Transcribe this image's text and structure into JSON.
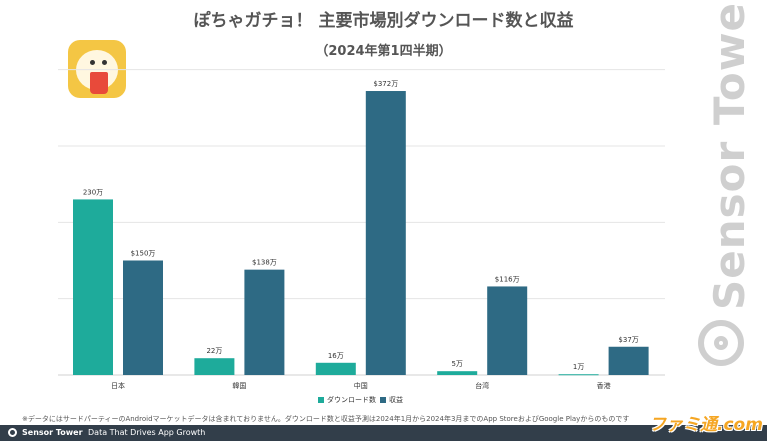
{
  "header": {
    "title": "ぽちゃガチョ！ 主要市場別ダウンロード数と収益",
    "subtitle": "（2024年第1四半期）"
  },
  "chart_data": {
    "type": "bar",
    "title": "ぽちゃガチョ！ 主要市場別ダウンロード数と収益",
    "subtitle": "（2024年第1四半期）",
    "categories": [
      "日本",
      "韓国",
      "中国",
      "台湾",
      "香港"
    ],
    "series": [
      {
        "name": "ダウンロード数",
        "values": [
          230,
          22,
          16,
          5,
          1
        ],
        "labels": [
          "230万",
          "22万",
          "16万",
          "5万",
          "1万"
        ],
        "color": "#1eab9b"
      },
      {
        "name": "収益",
        "values": [
          150,
          138,
          372,
          116,
          37
        ],
        "labels": [
          "$150万",
          "$138万",
          "$372万",
          "$116万",
          "$37万"
        ],
        "color": "#2e6a84"
      }
    ],
    "ylim": [
      0,
      400
    ],
    "grid": true,
    "legend_position": "bottom-center"
  },
  "footnote": "※データにはサードパーティーのAndroidマーケットデータは含まれておりません。ダウンロード数と収益予測は2024年1月から2024年3月までのApp StoreおよびGoogle Playからのものです",
  "footer": {
    "brand": "Sensor Tower",
    "tagline": "Data That Drives App Growth"
  },
  "watermark": {
    "brand_vertical": "Sensor Tower",
    "publisher": "ファミ通.com"
  },
  "colors": {
    "downloads": "#1eab9b",
    "revenue": "#2e6a84",
    "footer_bg": "#323e4a"
  }
}
